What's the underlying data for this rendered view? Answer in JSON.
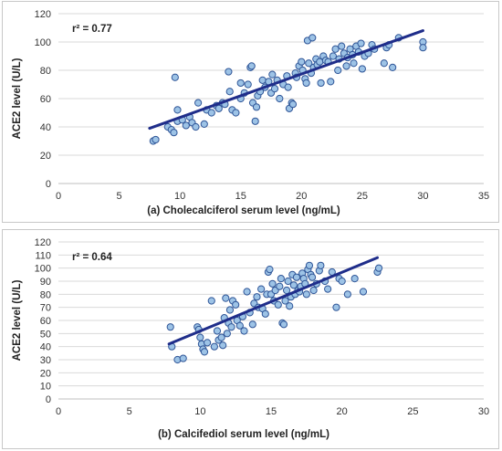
{
  "chart_data": [
    {
      "type": "scatter",
      "xlabel": "(a) Cholecalciferol serum level (ng/mL)",
      "ylabel": "ACE2 level (U/L)",
      "annotation": "r² = 0.77",
      "xlim": [
        0,
        35
      ],
      "ylim": [
        0,
        120
      ],
      "xticks": [
        "0",
        "5",
        "10",
        "15",
        "20",
        "25",
        "30",
        "35"
      ],
      "yticks": [
        "0",
        "20",
        "40",
        "60",
        "80",
        "100",
        "120"
      ],
      "grid": true,
      "marker_color": "#9dc3e6",
      "marker_edge": "#2f5597",
      "trendline_color": "#1f2d8a",
      "trendline": {
        "x": [
          7.5,
          30.0
        ],
        "y": [
          39,
          108
        ]
      },
      "points": [
        [
          7.8,
          30
        ],
        [
          8.0,
          31
        ],
        [
          9.0,
          40
        ],
        [
          9.3,
          38
        ],
        [
          9.5,
          36
        ],
        [
          9.8,
          44
        ],
        [
          9.6,
          75
        ],
        [
          9.8,
          52
        ],
        [
          10.2,
          45
        ],
        [
          10.5,
          41
        ],
        [
          10.8,
          47
        ],
        [
          11.0,
          43
        ],
        [
          11.5,
          57
        ],
        [
          11.3,
          40
        ],
        [
          12.0,
          42
        ],
        [
          12.2,
          52
        ],
        [
          12.6,
          50
        ],
        [
          13.0,
          55
        ],
        [
          13.2,
          53
        ],
        [
          13.5,
          57
        ],
        [
          13.7,
          56
        ],
        [
          14.0,
          79
        ],
        [
          14.1,
          65
        ],
        [
          14.3,
          52
        ],
        [
          14.6,
          50
        ],
        [
          15.0,
          60
        ],
        [
          15.0,
          71
        ],
        [
          15.3,
          64
        ],
        [
          15.6,
          70
        ],
        [
          15.8,
          82
        ],
        [
          15.9,
          83
        ],
        [
          16.0,
          57
        ],
        [
          16.2,
          44
        ],
        [
          16.3,
          54
        ],
        [
          16.4,
          62
        ],
        [
          16.6,
          65
        ],
        [
          16.8,
          73
        ],
        [
          17.0,
          68
        ],
        [
          17.3,
          72
        ],
        [
          17.5,
          64
        ],
        [
          17.6,
          77
        ],
        [
          17.8,
          67
        ],
        [
          18.0,
          73
        ],
        [
          18.2,
          60
        ],
        [
          18.5,
          70
        ],
        [
          18.8,
          76
        ],
        [
          18.9,
          68
        ],
        [
          19.0,
          53
        ],
        [
          19.2,
          57
        ],
        [
          19.3,
          56
        ],
        [
          19.5,
          78
        ],
        [
          19.6,
          75
        ],
        [
          19.8,
          83
        ],
        [
          20.0,
          86
        ],
        [
          20.1,
          80
        ],
        [
          20.3,
          74
        ],
        [
          20.4,
          71
        ],
        [
          20.5,
          101
        ],
        [
          20.6,
          85
        ],
        [
          20.8,
          78
        ],
        [
          20.9,
          103
        ],
        [
          21.0,
          82
        ],
        [
          21.2,
          88
        ],
        [
          21.3,
          84
        ],
        [
          21.5,
          86
        ],
        [
          21.6,
          71
        ],
        [
          21.8,
          90
        ],
        [
          22.0,
          87
        ],
        [
          22.2,
          86
        ],
        [
          22.4,
          72
        ],
        [
          22.6,
          90
        ],
        [
          22.8,
          95
        ],
        [
          23.0,
          80
        ],
        [
          23.1,
          88
        ],
        [
          23.3,
          97
        ],
        [
          23.5,
          92
        ],
        [
          23.7,
          83
        ],
        [
          23.8,
          89
        ],
        [
          24.0,
          95
        ],
        [
          24.2,
          91
        ],
        [
          24.3,
          85
        ],
        [
          24.5,
          97
        ],
        [
          24.7,
          93
        ],
        [
          24.9,
          99
        ],
        [
          25.0,
          81
        ],
        [
          25.2,
          90
        ],
        [
          25.5,
          92
        ],
        [
          25.8,
          98
        ],
        [
          26.0,
          95
        ],
        [
          26.8,
          85
        ],
        [
          27.0,
          96
        ],
        [
          27.2,
          98
        ],
        [
          27.5,
          82
        ],
        [
          28.0,
          103
        ],
        [
          30.0,
          100
        ],
        [
          30.0,
          96
        ]
      ]
    },
    {
      "type": "scatter",
      "xlabel": "(b) Calcifediol serum level (ng/mL)",
      "ylabel": "ACE2 level (U/L)",
      "annotation": "r² = 0.64",
      "xlim": [
        0,
        30
      ],
      "ylim": [
        0,
        120
      ],
      "xticks": [
        "0",
        "5",
        "10",
        "15",
        "20",
        "25",
        "30"
      ],
      "yticks": [
        "0",
        "10",
        "20",
        "30",
        "40",
        "50",
        "60",
        "70",
        "80",
        "90",
        "100",
        "110",
        "120"
      ],
      "grid": true,
      "marker_color": "#9dc3e6",
      "marker_edge": "#2f5597",
      "trendline_color": "#1f2d8a",
      "trendline": {
        "x": [
          7.8,
          22.5
        ],
        "y": [
          42,
          108
        ]
      },
      "points": [
        [
          7.9,
          55
        ],
        [
          8.0,
          40
        ],
        [
          8.4,
          30
        ],
        [
          8.8,
          31
        ],
        [
          9.8,
          55
        ],
        [
          9.9,
          53
        ],
        [
          10.0,
          47
        ],
        [
          10.1,
          42
        ],
        [
          10.2,
          38
        ],
        [
          10.3,
          36
        ],
        [
          10.5,
          43
        ],
        [
          10.8,
          75
        ],
        [
          11.0,
          40
        ],
        [
          11.2,
          52
        ],
        [
          11.3,
          45
        ],
        [
          11.5,
          47
        ],
        [
          11.6,
          41
        ],
        [
          11.7,
          62
        ],
        [
          11.8,
          77
        ],
        [
          11.9,
          50
        ],
        [
          12.0,
          58
        ],
        [
          12.1,
          68
        ],
        [
          12.2,
          55
        ],
        [
          12.3,
          75
        ],
        [
          12.5,
          72
        ],
        [
          12.6,
          60
        ],
        [
          12.8,
          56
        ],
        [
          13.0,
          63
        ],
        [
          13.1,
          52
        ],
        [
          13.3,
          82
        ],
        [
          13.5,
          66
        ],
        [
          13.7,
          57
        ],
        [
          13.8,
          73
        ],
        [
          14.0,
          78
        ],
        [
          14.1,
          70
        ],
        [
          14.3,
          84
        ],
        [
          14.4,
          69
        ],
        [
          14.6,
          65
        ],
        [
          14.7,
          80
        ],
        [
          14.8,
          97
        ],
        [
          14.9,
          99
        ],
        [
          15.0,
          80
        ],
        [
          15.1,
          88
        ],
        [
          15.2,
          75
        ],
        [
          15.3,
          83
        ],
        [
          15.5,
          72
        ],
        [
          15.6,
          86
        ],
        [
          15.7,
          92
        ],
        [
          15.8,
          58
        ],
        [
          15.9,
          57
        ],
        [
          16.0,
          75
        ],
        [
          16.1,
          83
        ],
        [
          16.2,
          90
        ],
        [
          16.3,
          71
        ],
        [
          16.4,
          78
        ],
        [
          16.5,
          95
        ],
        [
          16.6,
          87
        ],
        [
          16.7,
          80
        ],
        [
          16.8,
          93
        ],
        [
          16.9,
          83
        ],
        [
          17.0,
          82
        ],
        [
          17.1,
          86
        ],
        [
          17.2,
          96
        ],
        [
          17.3,
          92
        ],
        [
          17.4,
          88
        ],
        [
          17.5,
          80
        ],
        [
          17.6,
          99
        ],
        [
          17.7,
          102
        ],
        [
          17.8,
          95
        ],
        [
          17.9,
          93
        ],
        [
          18.0,
          83
        ],
        [
          18.2,
          88
        ],
        [
          18.4,
          98
        ],
        [
          18.5,
          102
        ],
        [
          18.8,
          90
        ],
        [
          19.0,
          84
        ],
        [
          19.3,
          97
        ],
        [
          19.6,
          70
        ],
        [
          19.8,
          92
        ],
        [
          20.0,
          90
        ],
        [
          20.4,
          80
        ],
        [
          20.9,
          92
        ],
        [
          21.5,
          82
        ],
        [
          22.5,
          97
        ],
        [
          22.6,
          100
        ]
      ]
    }
  ]
}
